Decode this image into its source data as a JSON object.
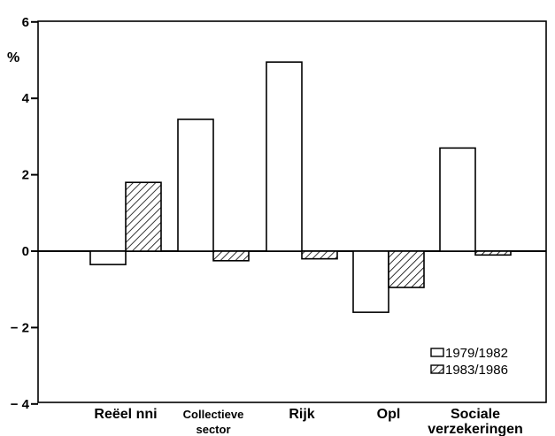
{
  "chart_data": {
    "type": "bar",
    "title": "",
    "xlabel": "",
    "ylabel": "%",
    "ylim": [
      -4,
      6
    ],
    "yticks": [
      6,
      4,
      2,
      0,
      -2,
      -4
    ],
    "ytick_labels": [
      "6",
      "4",
      "2",
      "0",
      "− 2",
      "− 4"
    ],
    "categories": [
      [
        "Reëel nni"
      ],
      [
        "Collectieve",
        "sector"
      ],
      [
        "Rijk"
      ],
      [
        "Opl"
      ],
      [
        "Sociale",
        "verzekeringen"
      ]
    ],
    "series": [
      {
        "name": "1979/1982",
        "fill": "none",
        "values": [
          -0.35,
          3.45,
          4.95,
          -1.6,
          2.7
        ]
      },
      {
        "name": "1983/1986",
        "fill": "hatched",
        "values": [
          1.8,
          -0.25,
          -0.2,
          -0.95,
          -0.1
        ]
      }
    ],
    "grid": false,
    "legend": "bottom-right",
    "colors": {
      "stroke": "#000000",
      "background": "#ffffff"
    }
  }
}
